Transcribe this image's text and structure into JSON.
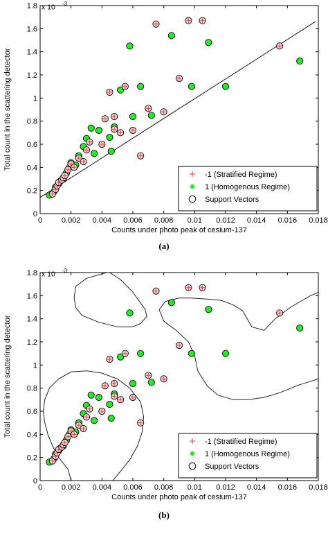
{
  "legend_entries": [
    "-1 (Stratified Regime)",
    "1 (Homogenous Regime)",
    "Support Vectors"
  ],
  "colors": {
    "stratified": "#ff3333",
    "homogenous": "#22ee22",
    "support_vector": "#000000",
    "boundary": "#222222",
    "fit_line": "#111111"
  },
  "chart_data": [
    {
      "type": "scatter",
      "caption": "(a)",
      "xlabel": "Counts under photo peak of cesium-137",
      "ylabel": "Total count in the scattering detector",
      "y_multiplier": "x 10",
      "y_exponent": "-3",
      "xlim": [
        0,
        0.018
      ],
      "ylim": [
        0,
        1.8
      ],
      "xticks": [
        "0",
        "0.002",
        "0.004",
        "0.006",
        "0.008",
        "0.01",
        "0.012",
        "0.014",
        "0.016",
        "0.018"
      ],
      "yticks": [
        "0",
        "0.2",
        "0.4",
        "0.6",
        "0.8",
        "1",
        "1.2",
        "1.4",
        "1.6",
        "1.8"
      ],
      "legend_position": "bottom-right",
      "fit_line": {
        "x": [
          0.0,
          0.0178
        ],
        "y": [
          0.14,
          1.66
        ]
      },
      "series": [
        {
          "name": "-1 (Stratified Regime)",
          "points": [
            [
              0.0008,
              0.17
            ],
            [
              0.001,
              0.21
            ],
            [
              0.0011,
              0.24
            ],
            [
              0.0012,
              0.27
            ],
            [
              0.0014,
              0.29
            ],
            [
              0.0015,
              0.31
            ],
            [
              0.0016,
              0.33
            ],
            [
              0.0018,
              0.38
            ],
            [
              0.002,
              0.43
            ],
            [
              0.0022,
              0.4
            ],
            [
              0.0025,
              0.48
            ],
            [
              0.0028,
              0.45
            ],
            [
              0.003,
              0.55
            ],
            [
              0.0032,
              0.62
            ],
            [
              0.004,
              0.6
            ],
            [
              0.0042,
              0.82
            ],
            [
              0.0045,
              1.05
            ],
            [
              0.0048,
              0.84
            ],
            [
              0.0048,
              0.73
            ],
            [
              0.0052,
              0.7
            ],
            [
              0.0055,
              1.1
            ],
            [
              0.006,
              0.72
            ],
            [
              0.0065,
              0.5
            ],
            [
              0.007,
              0.91
            ],
            [
              0.0075,
              1.64
            ],
            [
              0.008,
              0.88
            ],
            [
              0.009,
              1.17
            ],
            [
              0.0096,
              1.67
            ],
            [
              0.0105,
              1.67
            ],
            [
              0.0155,
              1.45
            ]
          ]
        },
        {
          "name": "1 (Homogenous Regime)",
          "points": [
            [
              0.0006,
              0.16
            ],
            [
              0.0009,
              0.19
            ],
            [
              0.001,
              0.23
            ],
            [
              0.0012,
              0.26
            ],
            [
              0.0013,
              0.28
            ],
            [
              0.0015,
              0.3
            ],
            [
              0.0017,
              0.35
            ],
            [
              0.0019,
              0.4
            ],
            [
              0.002,
              0.44
            ],
            [
              0.0023,
              0.42
            ],
            [
              0.0025,
              0.5
            ],
            [
              0.0028,
              0.58
            ],
            [
              0.003,
              0.65
            ],
            [
              0.0033,
              0.74
            ],
            [
              0.0035,
              0.52
            ],
            [
              0.0038,
              0.72
            ],
            [
              0.0045,
              0.66
            ],
            [
              0.0048,
              0.75
            ],
            [
              0.0046,
              0.54
            ],
            [
              0.0052,
              1.07
            ],
            [
              0.0058,
              1.45
            ],
            [
              0.006,
              0.84
            ],
            [
              0.0065,
              1.1
            ],
            [
              0.0072,
              0.85
            ],
            [
              0.0085,
              1.54
            ],
            [
              0.0098,
              1.1
            ],
            [
              0.0109,
              1.48
            ],
            [
              0.012,
              1.1
            ],
            [
              0.0168,
              1.32
            ]
          ]
        }
      ]
    },
    {
      "type": "scatter",
      "caption": "(b)",
      "xlabel": "Counts under photo peak of cesium-137",
      "ylabel": "Total count in the scattering detector",
      "y_multiplier": "x 10",
      "y_exponent": "-3",
      "xlim": [
        0,
        0.018
      ],
      "ylim": [
        0,
        1.8
      ],
      "xticks": [
        "0",
        "0.002",
        "0.004",
        "0.006",
        "0.008",
        "0.01",
        "0.012",
        "0.014",
        "0.016",
        "0.018"
      ],
      "yticks": [
        "0",
        "0.2",
        "0.4",
        "0.6",
        "0.8",
        "1",
        "1.2",
        "1.4",
        "1.6",
        "1.8"
      ],
      "legend_position": "bottom-right",
      "boundaries": [
        [
          [
            0.0043,
            1.8
          ],
          [
            0.003,
            1.75
          ],
          [
            0.0023,
            1.68
          ],
          [
            0.0022,
            1.58
          ],
          [
            0.0023,
            1.5
          ],
          [
            0.0027,
            1.43
          ],
          [
            0.0038,
            1.37
          ],
          [
            0.005,
            1.33
          ],
          [
            0.006,
            1.33
          ],
          [
            0.0065,
            1.36
          ],
          [
            0.0069,
            1.42
          ],
          [
            0.0068,
            1.48
          ],
          [
            0.006,
            1.63
          ],
          [
            0.0052,
            1.74
          ],
          [
            0.0045,
            1.8
          ]
        ],
        [
          [
            0.0077,
            1.48
          ],
          [
            0.0081,
            1.55
          ],
          [
            0.009,
            1.58
          ],
          [
            0.0098,
            1.58
          ],
          [
            0.0108,
            1.57
          ],
          [
            0.0117,
            1.56
          ],
          [
            0.0125,
            1.52
          ],
          [
            0.0131,
            1.47
          ],
          [
            0.0134,
            1.4
          ],
          [
            0.0137,
            1.33
          ],
          [
            0.0145,
            1.3
          ],
          [
            0.0152,
            1.4
          ],
          [
            0.0162,
            1.5
          ],
          [
            0.0175,
            1.6
          ],
          [
            0.018,
            1.63
          ]
        ],
        [
          [
            0.0077,
            1.48
          ],
          [
            0.008,
            1.38
          ],
          [
            0.0088,
            1.3
          ],
          [
            0.0096,
            1.2
          ],
          [
            0.01,
            1.08
          ],
          [
            0.0102,
            0.95
          ],
          [
            0.0108,
            0.82
          ],
          [
            0.0115,
            0.74
          ],
          [
            0.0125,
            0.7
          ],
          [
            0.0135,
            0.7
          ],
          [
            0.0145,
            0.72
          ],
          [
            0.0155,
            0.76
          ],
          [
            0.0168,
            0.83
          ],
          [
            0.018,
            0.88
          ]
        ],
        [
          [
            0.002,
            0.0
          ],
          [
            0.0018,
            0.1
          ],
          [
            0.0012,
            0.2
          ],
          [
            0.0008,
            0.3
          ],
          [
            0.0005,
            0.4
          ],
          [
            0.0003,
            0.5
          ],
          [
            0.0002,
            0.6
          ],
          [
            0.0003,
            0.7
          ],
          [
            0.0006,
            0.8
          ],
          [
            0.0012,
            0.88
          ],
          [
            0.002,
            0.94
          ],
          [
            0.003,
            0.95
          ],
          [
            0.004,
            0.93
          ],
          [
            0.005,
            0.88
          ],
          [
            0.0058,
            0.8
          ],
          [
            0.0065,
            0.68
          ],
          [
            0.0067,
            0.55
          ],
          [
            0.0066,
            0.42
          ],
          [
            0.0063,
            0.3
          ],
          [
            0.0058,
            0.18
          ],
          [
            0.0052,
            0.08
          ],
          [
            0.0047,
            0.0
          ]
        ]
      ],
      "series": [
        {
          "name": "-1 (Stratified Regime)",
          "points": [
            [
              0.0008,
              0.17
            ],
            [
              0.001,
              0.21
            ],
            [
              0.0011,
              0.24
            ],
            [
              0.0012,
              0.27
            ],
            [
              0.0014,
              0.29
            ],
            [
              0.0015,
              0.31
            ],
            [
              0.0016,
              0.33
            ],
            [
              0.0018,
              0.38
            ],
            [
              0.002,
              0.43
            ],
            [
              0.0022,
              0.4
            ],
            [
              0.0025,
              0.48
            ],
            [
              0.0028,
              0.45
            ],
            [
              0.003,
              0.55
            ],
            [
              0.0032,
              0.62
            ],
            [
              0.004,
              0.6
            ],
            [
              0.0042,
              0.82
            ],
            [
              0.0045,
              1.05
            ],
            [
              0.0048,
              0.84
            ],
            [
              0.0048,
              0.73
            ],
            [
              0.0052,
              0.7
            ],
            [
              0.0055,
              1.1
            ],
            [
              0.006,
              0.72
            ],
            [
              0.0065,
              0.5
            ],
            [
              0.007,
              0.91
            ],
            [
              0.0075,
              1.64
            ],
            [
              0.008,
              0.88
            ],
            [
              0.009,
              1.17
            ],
            [
              0.0096,
              1.67
            ],
            [
              0.0105,
              1.67
            ],
            [
              0.0155,
              1.45
            ]
          ]
        },
        {
          "name": "1 (Homogenous Regime)",
          "points": [
            [
              0.0006,
              0.16
            ],
            [
              0.0009,
              0.19
            ],
            [
              0.001,
              0.23
            ],
            [
              0.0012,
              0.26
            ],
            [
              0.0013,
              0.28
            ],
            [
              0.0015,
              0.3
            ],
            [
              0.0017,
              0.35
            ],
            [
              0.0019,
              0.4
            ],
            [
              0.002,
              0.44
            ],
            [
              0.0023,
              0.42
            ],
            [
              0.0025,
              0.5
            ],
            [
              0.0028,
              0.58
            ],
            [
              0.003,
              0.65
            ],
            [
              0.0033,
              0.74
            ],
            [
              0.0035,
              0.52
            ],
            [
              0.0038,
              0.72
            ],
            [
              0.0045,
              0.66
            ],
            [
              0.0048,
              0.75
            ],
            [
              0.0046,
              0.54
            ],
            [
              0.0052,
              1.07
            ],
            [
              0.0058,
              1.45
            ],
            [
              0.006,
              0.84
            ],
            [
              0.0065,
              1.1
            ],
            [
              0.0072,
              0.85
            ],
            [
              0.0085,
              1.54
            ],
            [
              0.0098,
              1.1
            ],
            [
              0.0109,
              1.48
            ],
            [
              0.012,
              1.1
            ],
            [
              0.0168,
              1.32
            ]
          ]
        }
      ]
    }
  ]
}
